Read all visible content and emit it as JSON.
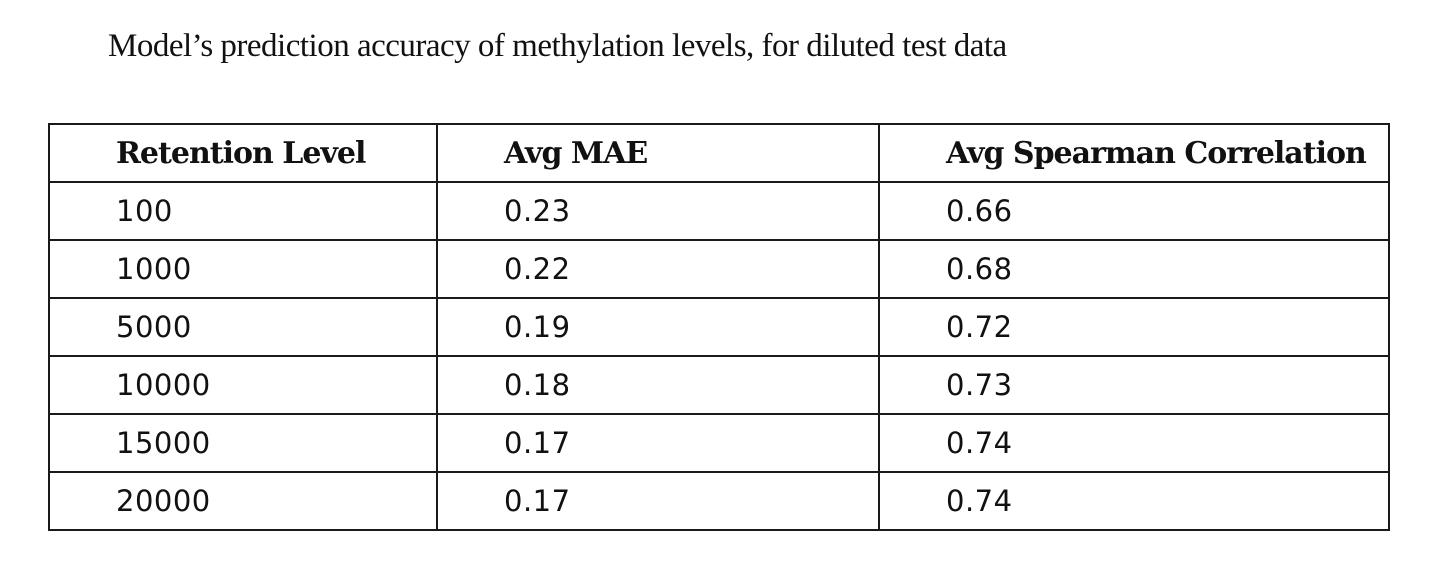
{
  "caption": "Model’s  prediction accuracy of methylation levels, for diluted test data",
  "table": {
    "headers": [
      "Retention Level",
      "Avg MAE",
      "Avg Spearman Correlation"
    ],
    "rows": [
      [
        "100",
        "0.23",
        "0.66"
      ],
      [
        "1000",
        "0.22",
        "0.68"
      ],
      [
        "5000",
        "0.19",
        "0.72"
      ],
      [
        "10000",
        "0.18",
        "0.73"
      ],
      [
        "15000",
        "0.17",
        "0.74"
      ],
      [
        "20000",
        "0.17",
        "0.74"
      ]
    ]
  }
}
